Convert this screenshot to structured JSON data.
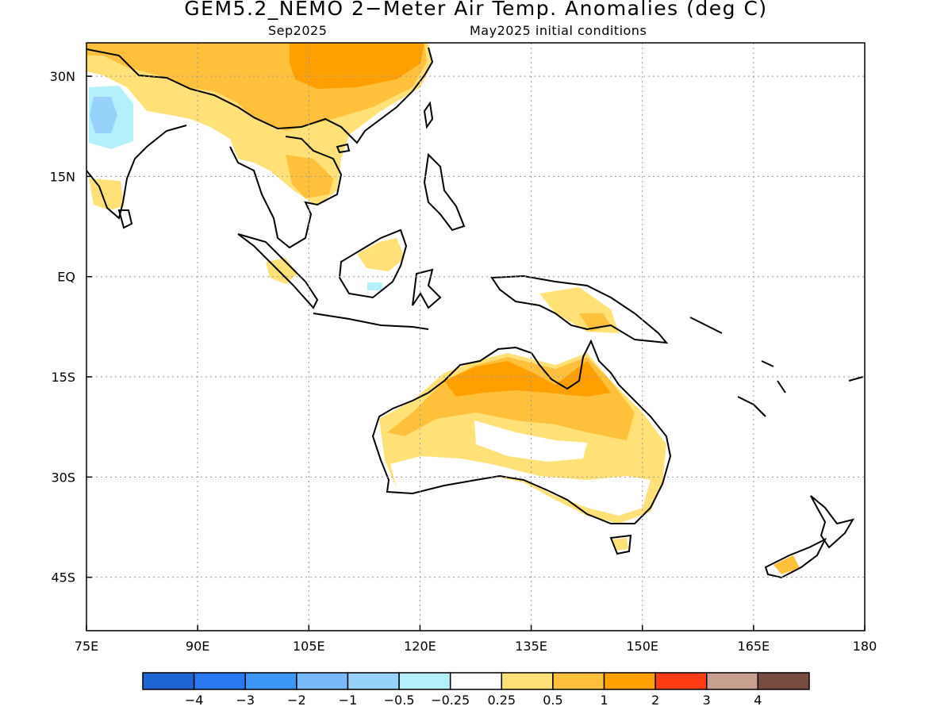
{
  "title": "GEM5.2_NEMO 2−Meter Air Temp. Anomalies (deg C)",
  "subtitle_left": "Sep2025",
  "subtitle_right": "May2025 initial conditions",
  "map": {
    "lon_range": [
      75,
      180
    ],
    "lat_range": [
      -53,
      35
    ],
    "lon_ticks": [
      "75E",
      "90E",
      "105E",
      "120E",
      "135E",
      "150E",
      "165E",
      "180"
    ],
    "lat_ticks": [
      "30N",
      "15N",
      "EQ",
      "15S",
      "30S",
      "45S"
    ],
    "grid": "dotted"
  },
  "colorbar": {
    "colors": [
      "#1E64D2",
      "#2878F0",
      "#3C96F5",
      "#78B9FA",
      "#96D2FA",
      "#B4F0FA",
      "#FFFFFF",
      "#FFE178",
      "#FFC03C",
      "#FFA000",
      "#FF3C14",
      "#C8A090",
      "#784C40"
    ],
    "labels": [
      "−4",
      "−3",
      "−2",
      "−1",
      "−0.5",
      "−0.25",
      "0.25",
      "0.5",
      "1",
      "2",
      "3",
      "4"
    ]
  }
}
